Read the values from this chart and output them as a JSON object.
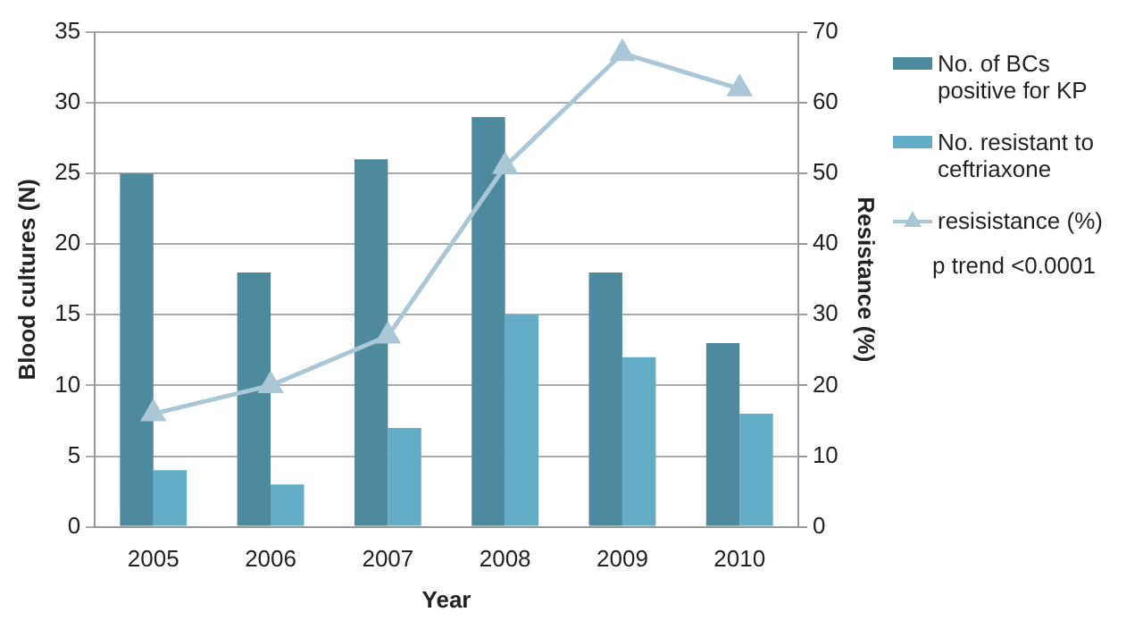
{
  "chart_data": {
    "type": "bar",
    "xlabel": "Year",
    "ylabel": "Blood cultures (N)",
    "y2label": "Resistance (%)",
    "categories": [
      "2005",
      "2006",
      "2007",
      "2008",
      "2009",
      "2010"
    ],
    "series": [
      {
        "name": "No. of BCs positive for KP",
        "color": "#4e8a9e",
        "values": [
          25,
          18,
          26,
          29,
          18,
          13
        ]
      },
      {
        "name": "No. resistant to ceftriaxone",
        "color": "#63adc6",
        "values": [
          4,
          3,
          7,
          15,
          12,
          8
        ]
      },
      {
        "name": "resisistance (%)",
        "type": "line",
        "axis": "y2",
        "color": "#a9c7d6",
        "marker": "triangle",
        "values": [
          16,
          20,
          27,
          51,
          67,
          62
        ]
      }
    ],
    "ylim": [
      0,
      35
    ],
    "yticks": [
      0,
      5,
      10,
      15,
      20,
      25,
      30,
      35
    ],
    "y2lim": [
      0,
      70
    ],
    "y2ticks": [
      0,
      10,
      20,
      30,
      40,
      50,
      60,
      70
    ],
    "grid": "y",
    "legend": "right",
    "annotations": [
      "p trend <0.0001"
    ]
  }
}
